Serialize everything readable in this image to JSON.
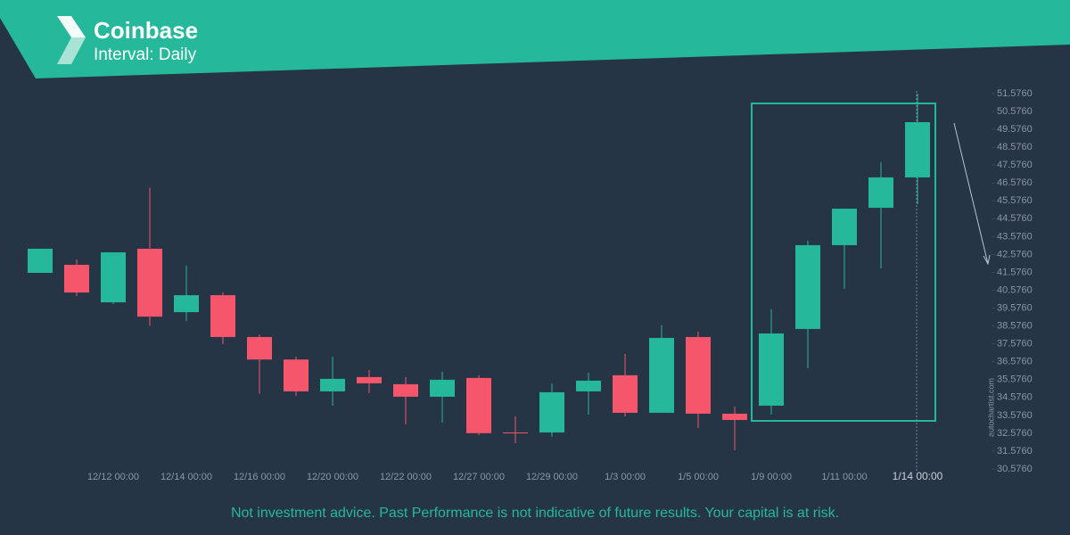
{
  "chart_data": {
    "type": "candlestick",
    "title": "Coinbase",
    "subtitle": "Interval: Daily",
    "note": "Not investment advice. Past Performance is not indicative of future results. Your capital is at risk.",
    "watermark": "autochartist.com",
    "categories": [
      null,
      null,
      "12/12 00:00",
      null,
      "12/14 00:00",
      null,
      "12/16 00:00",
      null,
      "12/20 00:00",
      null,
      "12/22 00:00",
      null,
      "12/27 00:00",
      null,
      "12/29 00:00",
      null,
      "1/3 00:00",
      null,
      "1/5 00:00",
      null,
      "1/9 00:00",
      null,
      "1/11 00:00",
      null,
      "1/14 00:00"
    ],
    "open": [
      41.55,
      42.0,
      39.9,
      42.9,
      39.35,
      40.3,
      37.96,
      36.7,
      34.92,
      35.72,
      35.32,
      34.62,
      35.67,
      32.62,
      32.62,
      34.92,
      35.82,
      33.72,
      37.96,
      33.67,
      34.12,
      38.41,
      43.1,
      45.19,
      46.89
    ],
    "high": [
      42.9,
      42.3,
      42.7,
      46.3,
      41.95,
      40.45,
      38.1,
      36.86,
      36.86,
      36.12,
      35.72,
      36.02,
      35.82,
      33.52,
      35.37,
      35.97,
      37.01,
      38.61,
      38.26,
      34.07,
      39.51,
      43.35,
      45.14,
      47.74,
      51.58
    ],
    "low": [
      41.55,
      40.25,
      39.8,
      38.6,
      38.85,
      37.56,
      34.8,
      34.67,
      34.12,
      34.82,
      33.07,
      33.17,
      32.47,
      32.02,
      32.37,
      33.62,
      33.52,
      33.72,
      32.87,
      31.63,
      33.62,
      36.21,
      40.65,
      41.8,
      45.39
    ],
    "close": [
      42.9,
      40.45,
      42.7,
      39.1,
      40.3,
      37.96,
      36.7,
      34.92,
      35.62,
      35.37,
      34.62,
      35.57,
      32.58,
      32.58,
      34.87,
      35.52,
      33.72,
      37.91,
      33.67,
      33.32,
      38.16,
      43.1,
      45.14,
      46.89,
      49.98
    ],
    "up_color": "#26b89a",
    "down_color": "#f5566b",
    "ylim": [
      30.576,
      51.576
    ],
    "yticks": [
      {
        "value": 30.576,
        "label": "30.5760"
      },
      {
        "value": 31.576,
        "label": "31.5760"
      },
      {
        "value": 32.576,
        "label": "32.5760"
      },
      {
        "value": 33.576,
        "label": "33.5760"
      },
      {
        "value": 34.576,
        "label": "34.5760"
      },
      {
        "value": 35.576,
        "label": "35.5760"
      },
      {
        "value": 36.576,
        "label": "36.5760"
      },
      {
        "value": 37.576,
        "label": "37.5760"
      },
      {
        "value": 38.576,
        "label": "38.5760"
      },
      {
        "value": 39.576,
        "label": "39.5760"
      },
      {
        "value": 40.576,
        "label": "40.5760"
      },
      {
        "value": 41.576,
        "label": "41.5760"
      },
      {
        "value": 42.576,
        "label": "42.5760"
      },
      {
        "value": 43.576,
        "label": "43.5760"
      },
      {
        "value": 44.576,
        "label": "44.5760"
      },
      {
        "value": 45.576,
        "label": "45.5760"
      },
      {
        "value": 46.576,
        "label": "46.5760"
      },
      {
        "value": 47.576,
        "label": "47.5760"
      },
      {
        "value": 48.576,
        "label": "48.5760"
      },
      {
        "value": 49.576,
        "label": "49.5760"
      },
      {
        "value": 50.576,
        "label": "50.5760"
      },
      {
        "value": 51.576,
        "label": "51.5760"
      }
    ]
  }
}
